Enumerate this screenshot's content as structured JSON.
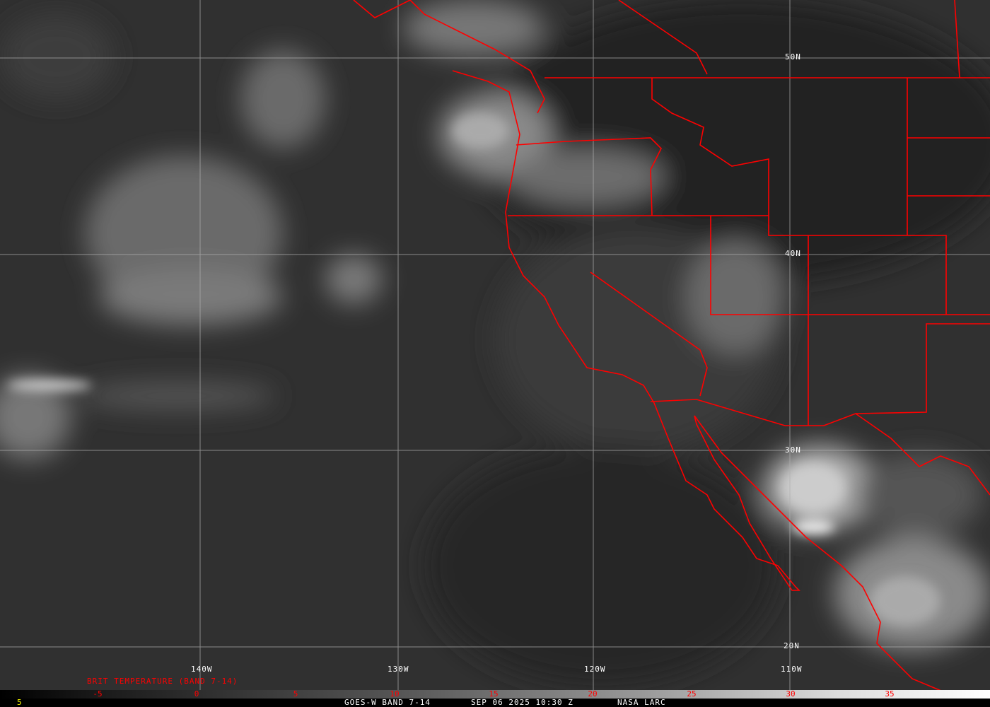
{
  "image": {
    "title_footer": "GOES-W BAND 7-14",
    "date": "SEP 06 2025 10:30 Z",
    "source": "NASA LARC",
    "corner_value": "5"
  },
  "legend": {
    "title": "BRIT TEMPERATURE (BAND 7-14)",
    "ticks": [
      "-5",
      "0",
      "5",
      "10",
      "15",
      "20",
      "25",
      "30",
      "35"
    ]
  },
  "grid": {
    "longitudes": [
      "140W",
      "130W",
      "120W",
      "110W"
    ],
    "latitudes": [
      "50N",
      "40N",
      "30N",
      "20N"
    ]
  },
  "colors": {
    "borders": "#ff0000",
    "grid": "#b0b0b0",
    "legend_text": "#ff0000",
    "corner_value": "#ffff00"
  }
}
